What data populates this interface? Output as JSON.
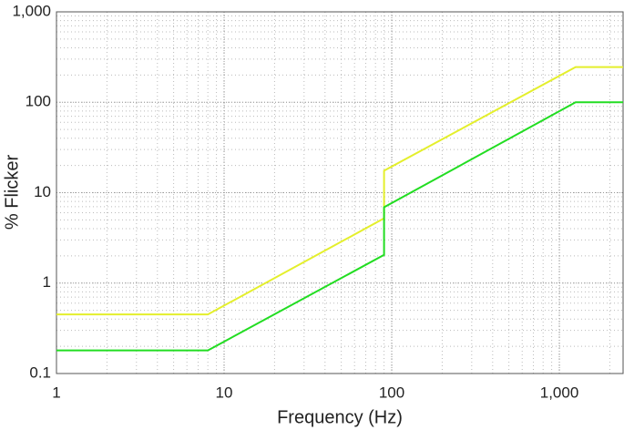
{
  "chart_data": {
    "type": "line",
    "xlabel": "Frequency (Hz)",
    "ylabel": "% Flicker",
    "x": [
      1,
      8,
      90,
      90,
      1250,
      2400
    ],
    "series": [
      {
        "color": "#e4ef2c",
        "values": [
          0.45,
          0.45,
          5.2,
          17.5,
          245,
          245
        ]
      },
      {
        "color": "#22dd22",
        "values": [
          0.18,
          0.18,
          2.05,
          6.9,
          100,
          100
        ]
      }
    ],
    "xlim": [
      1,
      2400
    ],
    "ylim": [
      0.1,
      1000
    ],
    "xticks": [
      1,
      10,
      100,
      {
        "value": 1000,
        "label": "1,000"
      }
    ],
    "yticks": [
      0.1,
      1,
      10,
      100,
      {
        "value": 1000,
        "label": "1,000"
      }
    ],
    "xscale": "log",
    "yscale": "log",
    "grid": true
  }
}
